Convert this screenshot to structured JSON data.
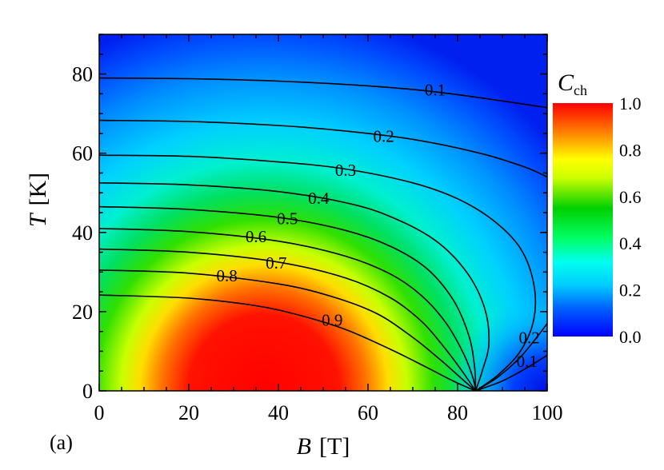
{
  "panel_label": "(a)",
  "chart_data": {
    "type": "heatmap",
    "subtype": "filled-contour",
    "xlabel": {
      "symbol": "B",
      "unit": "[T]"
    },
    "ylabel": {
      "symbol": "T",
      "unit": "[K]"
    },
    "xlim": [
      0,
      100
    ],
    "ylim": [
      0,
      90
    ],
    "x_ticks": [
      0,
      20,
      40,
      60,
      80,
      100
    ],
    "y_ticks": [
      0,
      20,
      40,
      60,
      80
    ],
    "colorbar": {
      "title_main": "C",
      "title_sub": "ch",
      "range": [
        0.0,
        1.0
      ],
      "ticks": [
        "0.0",
        "0.2",
        "0.4",
        "0.6",
        "0.8",
        "1.0"
      ],
      "colors": [
        "#0000ff",
        "#00ccff",
        "#00ffff",
        "#00ff66",
        "#00cc00",
        "#ccff00",
        "#ffff00",
        "#ffcc00",
        "#ff8000",
        "#ff0000"
      ]
    },
    "contours": [
      {
        "level": "0.1",
        "points": [
          [
            0,
            79
          ],
          [
            20,
            78.8
          ],
          [
            40,
            78.2
          ],
          [
            60,
            77
          ],
          [
            75,
            75.5
          ],
          [
            90,
            73.2
          ],
          [
            100,
            71.5
          ]
        ]
      },
      {
        "level": "0.2",
        "points": [
          [
            0,
            68.3
          ],
          [
            20,
            68
          ],
          [
            40,
            67
          ],
          [
            55,
            65.6
          ],
          [
            70,
            63.5
          ],
          [
            85,
            60
          ],
          [
            95,
            56.5
          ],
          [
            100,
            54
          ]
        ]
      },
      {
        "level": "0.3",
        "points": [
          [
            0,
            59.5
          ],
          [
            20,
            59.2
          ],
          [
            40,
            57.8
          ],
          [
            55,
            56
          ],
          [
            70,
            52.5
          ],
          [
            80,
            48.5
          ],
          [
            88,
            43
          ],
          [
            94,
            36
          ],
          [
            97,
            27
          ],
          [
            97,
            18
          ],
          [
            94,
            10
          ],
          [
            89,
            4
          ],
          [
            84,
            0
          ]
        ]
      },
      {
        "level": "0.4",
        "points": [
          [
            0,
            52.5
          ],
          [
            20,
            52
          ],
          [
            40,
            50.3
          ],
          [
            55,
            47.5
          ],
          [
            65,
            44
          ],
          [
            75,
            38
          ],
          [
            82,
            30
          ],
          [
            86,
            21
          ],
          [
            87,
            12
          ],
          [
            85.5,
            5
          ],
          [
            84,
            0
          ]
        ]
      },
      {
        "level": "0.5",
        "points": [
          [
            0,
            46.5
          ],
          [
            20,
            45.8
          ],
          [
            40,
            43.8
          ],
          [
            55,
            40.5
          ],
          [
            65,
            36.5
          ],
          [
            73,
            31
          ],
          [
            79,
            23
          ],
          [
            82.5,
            14
          ],
          [
            83.8,
            6
          ],
          [
            84,
            0
          ]
        ]
      },
      {
        "level": "0.6",
        "points": [
          [
            0,
            41
          ],
          [
            20,
            40.2
          ],
          [
            40,
            37.8
          ],
          [
            55,
            34
          ],
          [
            65,
            29.5
          ],
          [
            72,
            24
          ],
          [
            77.5,
            17
          ],
          [
            81.5,
            9
          ],
          [
            83.5,
            3
          ],
          [
            84,
            0
          ]
        ]
      },
      {
        "level": "0.7",
        "points": [
          [
            0,
            35.8
          ],
          [
            20,
            35
          ],
          [
            40,
            32.5
          ],
          [
            55,
            28.5
          ],
          [
            65,
            23.5
          ],
          [
            72,
            17.5
          ],
          [
            77,
            11
          ],
          [
            81,
            5
          ],
          [
            84,
            0
          ]
        ]
      },
      {
        "level": "0.8",
        "points": [
          [
            0,
            30.5
          ],
          [
            20,
            29.7
          ],
          [
            40,
            27
          ],
          [
            52,
            23.8
          ],
          [
            62,
            19.5
          ],
          [
            70,
            13.5
          ],
          [
            76,
            8
          ],
          [
            80.5,
            3.5
          ],
          [
            84,
            0
          ]
        ]
      },
      {
        "level": "0.9",
        "points": [
          [
            0,
            24.2
          ],
          [
            20,
            23.4
          ],
          [
            35,
            21.5
          ],
          [
            45,
            19
          ],
          [
            55,
            15.5
          ],
          [
            65,
            10.5
          ],
          [
            73,
            6
          ],
          [
            79,
            2.5
          ],
          [
            84,
            0
          ]
        ]
      },
      {
        "level": "0.2",
        "points": [
          [
            84,
            0
          ],
          [
            89,
            3.5
          ],
          [
            94,
            8.5
          ],
          [
            98,
            14
          ],
          [
            100,
            17
          ]
        ]
      },
      {
        "level": "0.1",
        "points": [
          [
            84,
            0
          ],
          [
            90,
            2.5
          ],
          [
            95,
            5.5
          ],
          [
            100,
            9
          ]
        ]
      }
    ],
    "contour_label_positions": [
      {
        "level": "0.1",
        "x": 75.0,
        "y": 75.5
      },
      {
        "level": "0.2",
        "x": 63.5,
        "y": 63.8
      },
      {
        "level": "0.3",
        "x": 55.0,
        "y": 55.3
      },
      {
        "level": "0.4",
        "x": 49.0,
        "y": 48.2
      },
      {
        "level": "0.5",
        "x": 42.0,
        "y": 43.0
      },
      {
        "level": "0.6",
        "x": 35.0,
        "y": 38.5
      },
      {
        "level": "0.7",
        "x": 39.5,
        "y": 31.8
      },
      {
        "level": "0.8",
        "x": 28.5,
        "y": 28.6
      },
      {
        "level": "0.9",
        "x": 52.0,
        "y": 17.4
      },
      {
        "level": "0.2",
        "x": 96.0,
        "y": 13.0
      },
      {
        "level": "0.1",
        "x": 95.5,
        "y": 7.0
      }
    ]
  }
}
